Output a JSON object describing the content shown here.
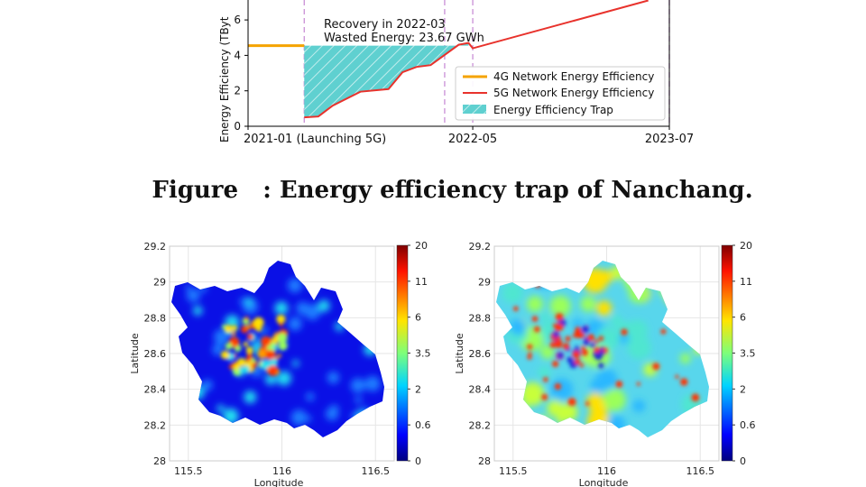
{
  "caption": {
    "prefix": "Figure",
    "text": ": Energy efficiency trap of Nanchang."
  },
  "colors": {
    "g4": "#f5a300",
    "g5": "#e8322c",
    "trap": "#5fd0d0",
    "guide": "#c98fd6"
  },
  "chart_data": [
    {
      "type": "line",
      "title": "",
      "xlabel": "",
      "ylabel": "Energy Efficiency (TByte/GWh)",
      "ylabel_visible": "Energy Efficiency (TByt",
      "xlim": [
        0,
        30
      ],
      "ylim": [
        0,
        7
      ],
      "yticks": [
        0,
        2,
        4,
        6
      ],
      "xticks": [
        {
          "x": 0,
          "label": "2021-01 (Launching 5G)"
        },
        {
          "x": 16,
          "label": "2022-05"
        },
        {
          "x": 30,
          "label": "2023-07"
        }
      ],
      "guide_lines_x": [
        4,
        14,
        16,
        30
      ],
      "series": [
        {
          "name": "4G Network Energy Efficiency",
          "x": [
            0,
            4
          ],
          "y": [
            4.55,
            4.55
          ]
        },
        {
          "name": "5G Network Energy Efficiency",
          "x": [
            4,
            5,
            6,
            8,
            10,
            11,
            12,
            13,
            15,
            15.7,
            16,
            28.5
          ],
          "y": [
            0.5,
            0.55,
            1.15,
            1.95,
            2.1,
            3.05,
            3.35,
            3.45,
            4.6,
            4.7,
            4.4,
            7.1
          ]
        }
      ],
      "trap": {
        "name": "Energy Efficiency Trap",
        "x_start": 4,
        "x_end": 15.7,
        "baseline": 4.55
      },
      "legend": [
        "4G Network Energy Efficiency",
        "5G Network Energy Efficiency",
        "Energy Efficiency Trap"
      ],
      "annotation": [
        "Recovery in 2022-03",
        "Wasted Energy: 23.67 GWh"
      ]
    },
    {
      "type": "heatmap",
      "xlabel": "Longitude",
      "ylabel": "Latitude",
      "xlim": [
        115.4,
        116.6
      ],
      "ylim": [
        28,
        29.2
      ],
      "xticks": [
        115.5,
        116,
        116.5
      ],
      "yticks": [
        28,
        28.2,
        28.4,
        28.6,
        28.8,
        29,
        29.2
      ],
      "ytick_labels": [
        "28",
        "28.2",
        "28.4",
        "28.6",
        "28.8",
        "29",
        "29.2"
      ],
      "colorbar_ticks": [
        "20",
        "11",
        "6",
        "3.5",
        "2",
        "0.6",
        "0"
      ],
      "colormap": "jet",
      "description_level": "low"
    },
    {
      "type": "heatmap",
      "xlabel": "Longitude",
      "ylabel": "Latitude",
      "xlim": [
        115.4,
        116.6
      ],
      "ylim": [
        28,
        29.2
      ],
      "xticks": [
        115.5,
        116,
        116.5
      ],
      "yticks": [
        28,
        28.2,
        28.4,
        28.6,
        28.8,
        29,
        29.2
      ],
      "ytick_labels": [
        "28",
        "28.2",
        "28.4",
        "28.6",
        "28.8",
        "29",
        "29.2"
      ],
      "colorbar_ticks": [
        "20",
        "11",
        "6",
        "3.5",
        "2",
        "0.6",
        "0"
      ],
      "colormap": "jet",
      "description_level": "high"
    }
  ]
}
